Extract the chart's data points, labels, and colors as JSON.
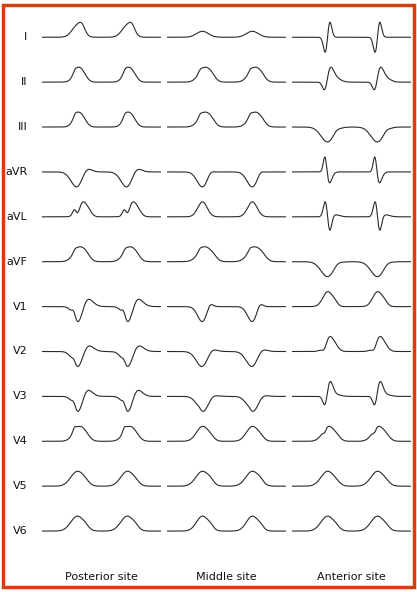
{
  "leads": [
    "I",
    "II",
    "III",
    "aVR",
    "aVL",
    "aVF",
    "V1",
    "V2",
    "V3",
    "V4",
    "V5",
    "V6"
  ],
  "columns": [
    "Posterior site",
    "Middle site",
    "Anterior site"
  ],
  "background_color": "#ffffff",
  "line_color": "#2a2a2a",
  "border_color": "#d04010",
  "label_fontsize": 8,
  "col_fontsize": 8,
  "figsize": [
    4.17,
    5.92
  ],
  "dpi": 100
}
